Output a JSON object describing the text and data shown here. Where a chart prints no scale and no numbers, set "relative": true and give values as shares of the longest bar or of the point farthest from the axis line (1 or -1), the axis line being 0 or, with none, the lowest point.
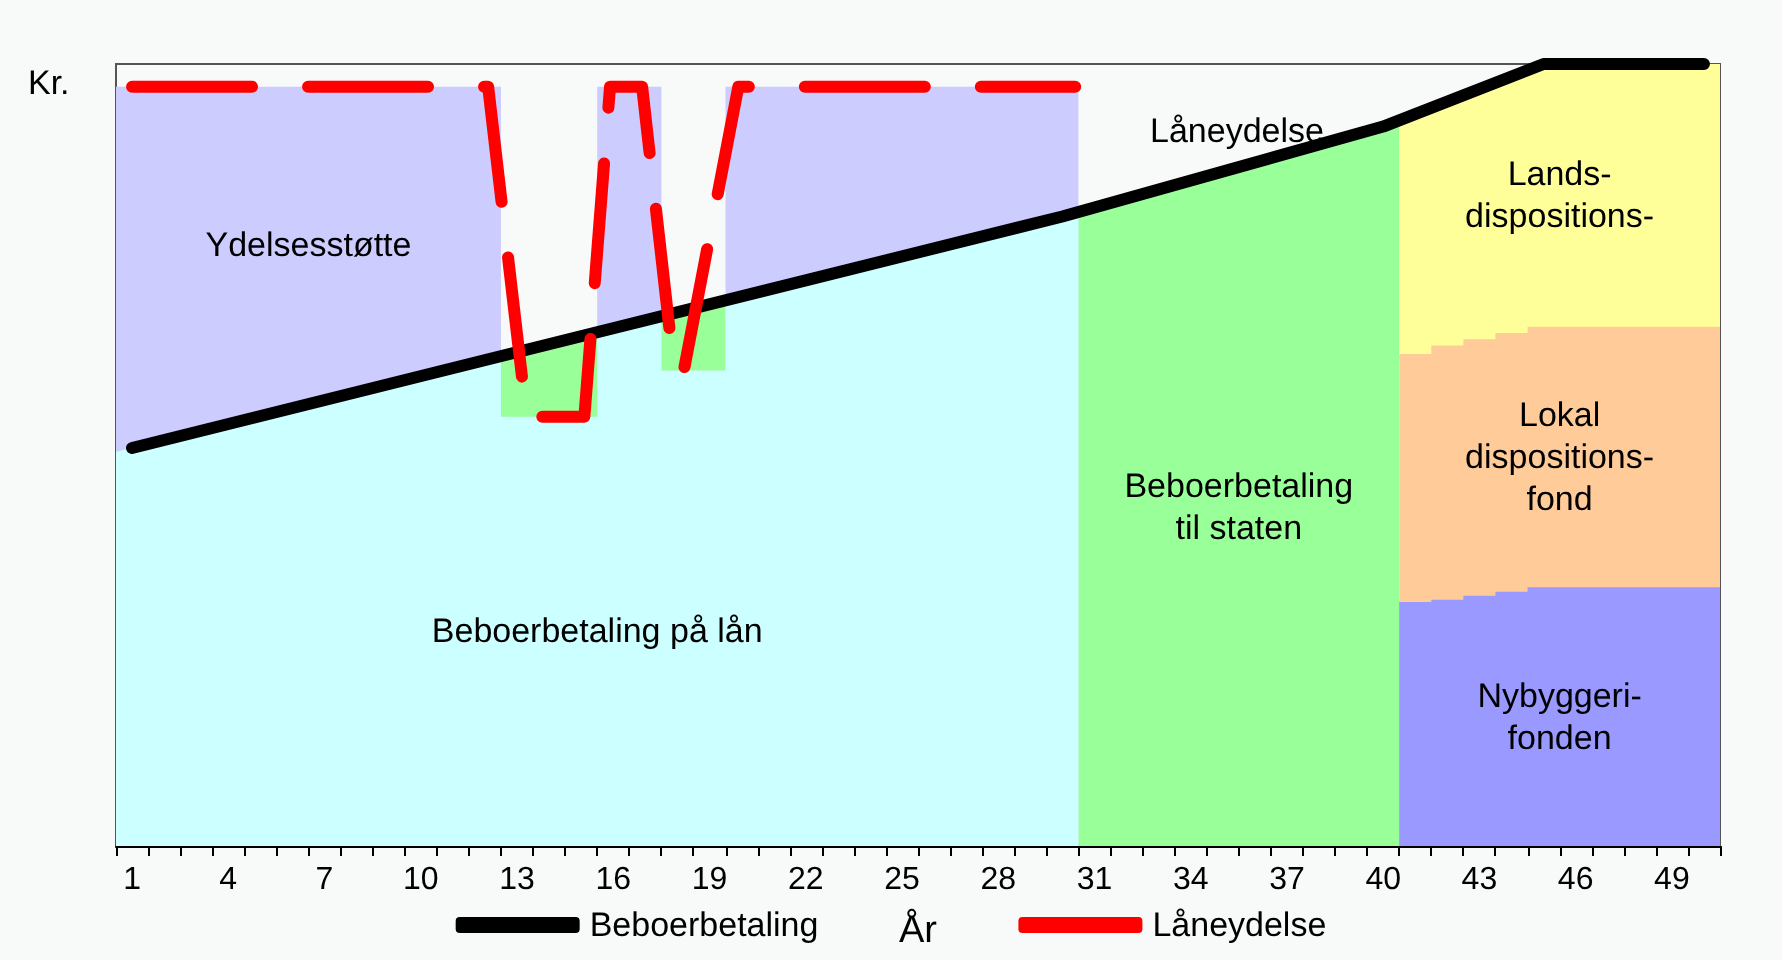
{
  "chart_data": {
    "type": "area",
    "relative": true,
    "xlabel": "År",
    "ylabel": "Kr.",
    "legend": "bottom",
    "marker": "none",
    "xlim": [
      0.5,
      50.5
    ],
    "xticks": [
      {
        "value": 0.5,
        "label": null
      },
      1,
      {
        "value": 1.5,
        "label": null
      },
      {
        "value": 2.5,
        "label": null
      },
      {
        "value": 3.5,
        "label": null
      },
      4,
      {
        "value": 4.5,
        "label": null
      },
      {
        "value": 5.5,
        "label": null
      },
      {
        "value": 6.5,
        "label": null
      },
      7,
      {
        "value": 7.5,
        "label": null
      },
      {
        "value": 8.5,
        "label": null
      },
      {
        "value": 9.5,
        "label": null
      },
      10,
      {
        "value": 10.5,
        "label": null
      },
      {
        "value": 11.5,
        "label": null
      },
      {
        "value": 12.5,
        "label": null
      },
      13,
      {
        "value": 13.5,
        "label": null
      },
      {
        "value": 14.5,
        "label": null
      },
      {
        "value": 15.5,
        "label": null
      },
      16,
      {
        "value": 16.5,
        "label": null
      },
      {
        "value": 17.5,
        "label": null
      },
      {
        "value": 18.5,
        "label": null
      },
      19,
      {
        "value": 19.5,
        "label": null
      },
      {
        "value": 20.5,
        "label": null
      },
      {
        "value": 21.5,
        "label": null
      },
      22,
      {
        "value": 22.5,
        "label": null
      },
      {
        "value": 23.5,
        "label": null
      },
      {
        "value": 24.5,
        "label": null
      },
      25,
      {
        "value": 25.5,
        "label": null
      },
      {
        "value": 26.5,
        "label": null
      },
      {
        "value": 27.5,
        "label": null
      },
      28,
      {
        "value": 28.5,
        "label": null
      },
      {
        "value": 29.5,
        "label": null
      },
      {
        "value": 30.5,
        "label": null
      },
      31,
      {
        "value": 31.5,
        "label": null
      },
      {
        "value": 32.5,
        "label": null
      },
      {
        "value": 33.5,
        "label": null
      },
      34,
      {
        "value": 34.5,
        "label": null
      },
      {
        "value": 35.5,
        "label": null
      },
      {
        "value": 36.5,
        "label": null
      },
      37,
      {
        "value": 37.5,
        "label": null
      },
      {
        "value": 38.5,
        "label": null
      },
      {
        "value": 39.5,
        "label": null
      },
      40,
      {
        "value": 40.5,
        "label": null
      },
      {
        "value": 41.5,
        "label": null
      },
      {
        "value": 42.5,
        "label": null
      },
      43,
      {
        "value": 43.5,
        "label": null
      },
      {
        "value": 44.5,
        "label": null
      },
      {
        "value": 45.5,
        "label": null
      },
      46,
      {
        "value": 46.5,
        "label": null
      },
      {
        "value": 47.5,
        "label": null
      },
      {
        "value": 48.5,
        "label": null
      },
      49,
      {
        "value": 49.5,
        "label": null
      },
      {
        "value": 50.5,
        "label": null
      }
    ],
    "annotations": [
      "Låneydelse"
    ],
    "series": [
      {
        "name": "Ydelsesstøtte",
        "color": "#ccccff",
        "x": [
          0.5,
          12.5,
          14,
          15.5,
          17.5,
          18.5,
          19.5,
          30.5
        ],
        "values": [
          0.971,
          0.971,
          null,
          0.971,
          0.971,
          null,
          0.971,
          0.971
        ]
      },
      {
        "name": "Beboerbetaling\ntil staten",
        "color": "#99ff99",
        "x": [
          12.5,
          15.5,
          16.5,
          17.5,
          19.5,
          25,
          30.5,
          40.5
        ],
        "values": [
          0.626,
          0.657,
          null,
          0.677,
          0.698,
          null,
          0.811,
          0.925
        ]
      },
      {
        "name": "Beboerbetaling på lån",
        "color": "#ccffff",
        "x": [
          0.5,
          12.5,
          12.5,
          15.5,
          15.5,
          17.5,
          17.5,
          19.5,
          19.5,
          30.5
        ],
        "values": [
          0.504,
          0.626,
          0.549,
          0.549,
          0.657,
          0.677,
          0.608,
          0.608,
          0.698,
          0.811
        ]
      },
      {
        "name": "Lands-\ndispositions-",
        "color": "#ffff99",
        "x": [
          40.5,
          45,
          50.5
        ],
        "values": [
          0.925,
          1.0,
          1.0
        ]
      },
      {
        "name": "Lokal\ndispositions-\nfond",
        "color": "#ffcc99",
        "x": [
          40.5,
          41.5,
          41.5,
          42.5,
          42.5,
          43.5,
          43.5,
          44.5,
          44.5,
          50.5
        ],
        "values": [
          0.629,
          0.629,
          0.64,
          0.64,
          0.648,
          0.648,
          0.656,
          0.656,
          0.664,
          0.664
        ]
      },
      {
        "name": "Nybyggeri-\nfonden",
        "color": "#9999ff",
        "x": [
          40.5,
          41.5,
          41.5,
          42.5,
          42.5,
          43.5,
          43.5,
          44.5,
          44.5,
          50.5
        ],
        "values": [
          0.312,
          0.312,
          0.315,
          0.315,
          0.32,
          0.32,
          0.325,
          0.325,
          0.331,
          0.331
        ]
      },
      {
        "name": "Beboerbetaling",
        "type": "line",
        "color": "#000000",
        "line_style": "solid",
        "x": [
          1,
          30,
          40,
          45,
          50
        ],
        "values": [
          0.509,
          0.805,
          0.92,
          1.0,
          1.0
        ]
      },
      {
        "name": "Låneydelse",
        "type": "line",
        "color": "#ff0000",
        "line_style": "dashed",
        "x": [
          1,
          12.1,
          13.3,
          15.1,
          15.9,
          16.9,
          17.9,
          18.2,
          19.9,
          30.4
        ],
        "values": [
          0.971,
          0.971,
          0.549,
          0.549,
          0.971,
          0.971,
          0.608,
          0.608,
          0.971,
          0.971
        ]
      }
    ]
  }
}
